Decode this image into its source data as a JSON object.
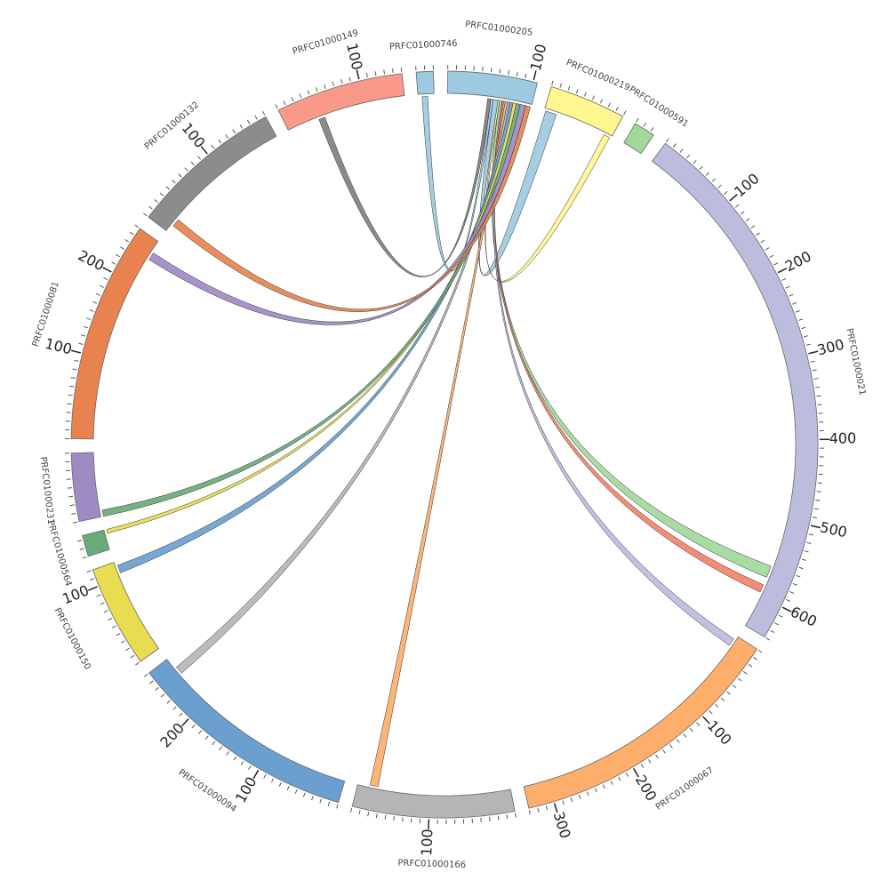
{
  "diagram": {
    "segments": [
      {
        "name": "PRFC01000205",
        "length": 105,
        "color": "#9ecae1",
        "ticks": [
          100
        ]
      },
      {
        "name": "PRFC01000219",
        "length": 90,
        "color": "#fff68f",
        "ticks": []
      },
      {
        "name": "PRFC01000591",
        "length": 25,
        "color": "#a1d99b",
        "ticks": []
      },
      {
        "name": "PRFC01000021",
        "length": 640,
        "color": "#bcbddc",
        "ticks": [
          100,
          200,
          300,
          400,
          500,
          600
        ]
      },
      {
        "name": "PRFC01000067",
        "length": 330,
        "color": "#fdae6b",
        "ticks": [
          100,
          200,
          300
        ]
      },
      {
        "name": "PRFC01000166",
        "length": 190,
        "color": "#b5b5b5",
        "ticks": [
          100
        ]
      },
      {
        "name": "PRFC01000094",
        "length": 270,
        "color": "#6a9fcf",
        "ticks": [
          100,
          200
        ]
      },
      {
        "name": "PRFC01000150",
        "length": 120,
        "color": "#e8dc50",
        "ticks": [
          100
        ]
      },
      {
        "name": "PRFC01000564",
        "length": 25,
        "color": "#6aaa7a",
        "ticks": []
      },
      {
        "name": "PRFC01000231",
        "length": 80,
        "color": "#9e8bc4",
        "ticks": []
      },
      {
        "name": "PRFC01000081",
        "length": 260,
        "color": "#e8834f",
        "ticks": [
          100,
          200
        ]
      },
      {
        "name": "PRFC01000132",
        "length": 180,
        "color": "#8c8c8c",
        "ticks": [
          100
        ]
      },
      {
        "name": "PRFC01000149",
        "length": 150,
        "color": "#f9998a",
        "ticks": [
          100
        ]
      },
      {
        "name": "PRFC01000746",
        "length": 20,
        "color": "#9ecae1",
        "ticks": []
      }
    ],
    "minor_tick": 10,
    "links": [
      {
        "from": "PRFC01000149",
        "from_start": 40,
        "from_end": 48,
        "to": "PRFC01000205",
        "to_start": 50,
        "to_end": 54,
        "color": "#808080"
      },
      {
        "from": "PRFC01000746",
        "from_start": 5,
        "from_end": 12,
        "to": "PRFC01000205",
        "to_start": 54,
        "to_end": 57,
        "color": "#9ecae1"
      },
      {
        "from": "PRFC01000219",
        "from_start": 2,
        "from_end": 16,
        "to": "PRFC01000205",
        "to_start": 57,
        "to_end": 63,
        "color": "#9ecae1"
      },
      {
        "from": "PRFC01000219",
        "from_start": 80,
        "from_end": 88,
        "to": "PRFC01000205",
        "to_start": 63,
        "to_end": 65,
        "color": "#fff68f"
      },
      {
        "from": "PRFC01000021",
        "from_start": 560,
        "from_end": 575,
        "to": "PRFC01000205",
        "to_start": 65,
        "to_end": 68,
        "color": "#a1d99b"
      },
      {
        "from": "PRFC01000021",
        "from_start": 585,
        "from_end": 595,
        "to": "PRFC01000205",
        "to_start": 68,
        "to_end": 70,
        "color": "#f4826a"
      },
      {
        "from": "PRFC01000067",
        "from_start": 5,
        "from_end": 15,
        "to": "PRFC01000205",
        "to_start": 70,
        "to_end": 72,
        "color": "#bcbddc"
      },
      {
        "from": "PRFC01000166",
        "from_start": 165,
        "from_end": 175,
        "to": "PRFC01000205",
        "to_start": 72,
        "to_end": 75,
        "color": "#fdae6b"
      },
      {
        "from": "PRFC01000094",
        "from_start": 245,
        "from_end": 255,
        "to": "PRFC01000205",
        "to_start": 75,
        "to_end": 78,
        "color": "#b5b5b5"
      },
      {
        "from": "PRFC01000150",
        "from_start": 105,
        "from_end": 115,
        "to": "PRFC01000205",
        "to_start": 78,
        "to_end": 82,
        "color": "#6a9fcf"
      },
      {
        "from": "PRFC01000564",
        "from_start": 20,
        "from_end": 25,
        "to": "PRFC01000205",
        "to_start": 82,
        "to_end": 86,
        "color": "#e8dc50"
      },
      {
        "from": "PRFC01000231",
        "from_start": 0,
        "from_end": 8,
        "to": "PRFC01000205",
        "to_start": 86,
        "to_end": 91,
        "color": "#6aaa7a"
      },
      {
        "from": "PRFC01000081",
        "from_start": 235,
        "from_end": 245,
        "to": "PRFC01000205",
        "to_start": 91,
        "to_end": 98,
        "color": "#9e8bc4"
      },
      {
        "from": "PRFC01000132",
        "from_start": 10,
        "from_end": 20,
        "to": "PRFC01000205",
        "to_start": 98,
        "to_end": 104,
        "color": "#e8834f"
      }
    ]
  }
}
